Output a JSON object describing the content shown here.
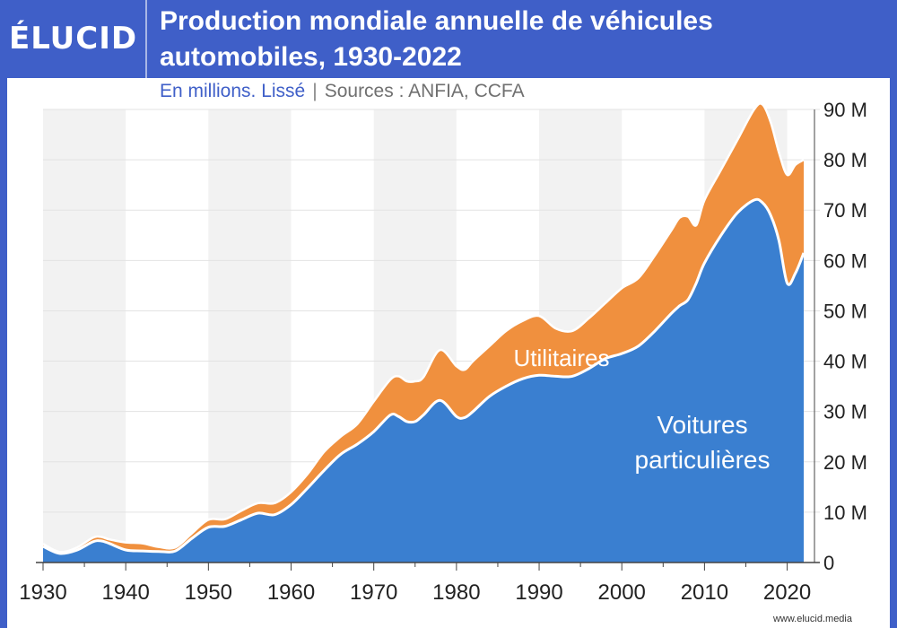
{
  "header": {
    "logo": "ÉLUCID",
    "title": "Production mondiale annuelle de véhicules automobiles, 1930-2022",
    "subtitle_note": "En millions. Lissé",
    "subtitle_sources": "Sources : ANFIA, CCFA"
  },
  "footer": {
    "site": "www.elucid.media"
  },
  "colors": {
    "brand": "#3f5fc8",
    "voitures": "#3a7fd0",
    "utilitaires": "#f0903e"
  },
  "chart_data": {
    "type": "area",
    "stacked": true,
    "title": "Production mondiale annuelle de véhicules automobiles, 1930-2022",
    "x": [
      1930,
      1932,
      1934,
      1936,
      1937,
      1938,
      1940,
      1942,
      1944,
      1946,
      1948,
      1950,
      1952,
      1954,
      1956,
      1958,
      1960,
      1962,
      1964,
      1966,
      1968,
      1970,
      1972,
      1973,
      1974,
      1975,
      1976,
      1978,
      1980,
      1981,
      1982,
      1984,
      1986,
      1988,
      1990,
      1992,
      1994,
      1996,
      1998,
      2000,
      2002,
      2004,
      2006,
      2007,
      2008,
      2009,
      2010,
      2012,
      2014,
      2016,
      2017,
      2018,
      2019,
      2020,
      2021,
      2022
    ],
    "series": [
      {
        "name": "Voitures particulières",
        "values": [
          3.2,
          1.8,
          2.4,
          4.1,
          4.3,
          3.8,
          2.5,
          2.3,
          2.2,
          2.3,
          4.8,
          7.0,
          7.2,
          8.5,
          9.8,
          9.5,
          11.5,
          14.8,
          18.3,
          21.5,
          23.5,
          26.0,
          29.3,
          29.0,
          28.0,
          28.0,
          29.3,
          32.2,
          29.0,
          28.8,
          30.0,
          33.0,
          35.0,
          36.5,
          37.2,
          37.0,
          37.0,
          38.5,
          40.5,
          41.5,
          43.0,
          46.0,
          49.5,
          51.0,
          52.2,
          55.5,
          59.5,
          65.0,
          69.5,
          72.0,
          71.5,
          69.0,
          64.0,
          55.5,
          57.5,
          61.5
        ]
      },
      {
        "name": "Utilitaires",
        "values": [
          0.5,
          0.3,
          0.5,
          0.8,
          0.8,
          0.8,
          1.5,
          1.5,
          0.9,
          0.7,
          1.0,
          1.5,
          1.4,
          1.8,
          2.0,
          2.3,
          2.5,
          2.8,
          3.7,
          3.5,
          4.0,
          6.0,
          7.0,
          8.0,
          8.0,
          8.0,
          7.5,
          10.0,
          10.0,
          9.5,
          10.0,
          10.0,
          11.0,
          11.5,
          11.8,
          9.5,
          9.0,
          10.0,
          11.0,
          13.0,
          13.5,
          15.0,
          16.5,
          17.5,
          16.5,
          11.5,
          12.5,
          13.0,
          14.5,
          18.0,
          19.5,
          18.5,
          17.5,
          21.5,
          21.5,
          18.5
        ]
      }
    ],
    "series_labels": [
      "Utilitaires",
      "Voitures particulières"
    ],
    "x_ticks": [
      "1930",
      "1940",
      "1950",
      "1960",
      "1970",
      "1980",
      "1990",
      "2000",
      "2010",
      "2020"
    ],
    "y_ticks": [
      "0",
      "10 M",
      "20 M",
      "30 M",
      "40 M",
      "50 M",
      "60 M",
      "70 M",
      "80 M",
      "90 M"
    ],
    "y_tick_values": [
      0,
      10,
      20,
      30,
      40,
      50,
      60,
      70,
      80,
      90
    ],
    "xlim": [
      1930,
      2022
    ],
    "ylim": [
      0,
      90
    ],
    "ylabel_position": "right",
    "grid": true,
    "decade_shading": true
  }
}
